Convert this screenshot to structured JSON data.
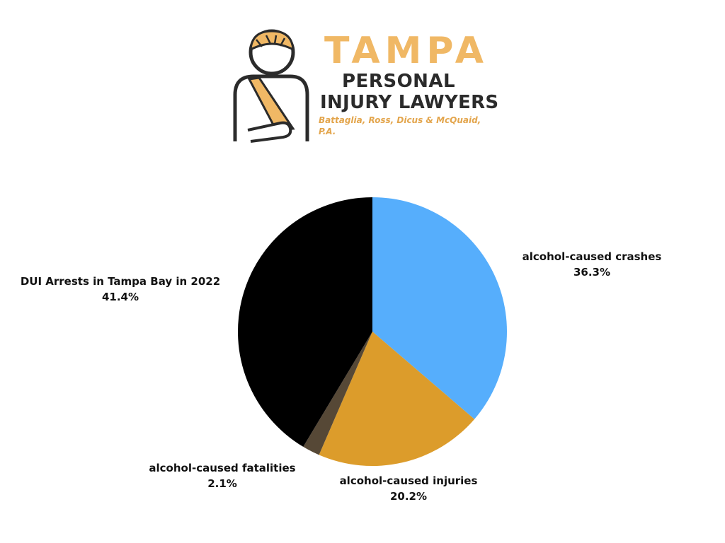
{
  "logo": {
    "brand_name": "TAMPA",
    "line1": "PERSONAL",
    "line2": "INJURY LAWYERS",
    "firm": "Battaglia, Ross, Dicus & McQuaid, P.A.",
    "colors": {
      "accent": "#f0b865",
      "text": "#2b2b2b",
      "firm": "#e3a54c"
    },
    "icon": "injured-person-with-arm-sling-icon"
  },
  "chart_data": {
    "type": "pie",
    "title": "",
    "start_angle_deg": 0,
    "direction": "clockwise",
    "slices": [
      {
        "label": "alcohol-caused crashes",
        "value": 36.3,
        "display": "36.3%",
        "color": "#56aefc"
      },
      {
        "label": "alcohol-caused injuries",
        "value": 20.2,
        "display": "20.2%",
        "color": "#dc9c2b"
      },
      {
        "label": "alcohol-caused fatalities",
        "value": 2.1,
        "display": "2.1%",
        "color": "#564836"
      },
      {
        "label": "DUI Arrests in Tampa Bay in 2022",
        "value": 41.4,
        "display": "41.4%",
        "color": "#000000"
      }
    ]
  }
}
